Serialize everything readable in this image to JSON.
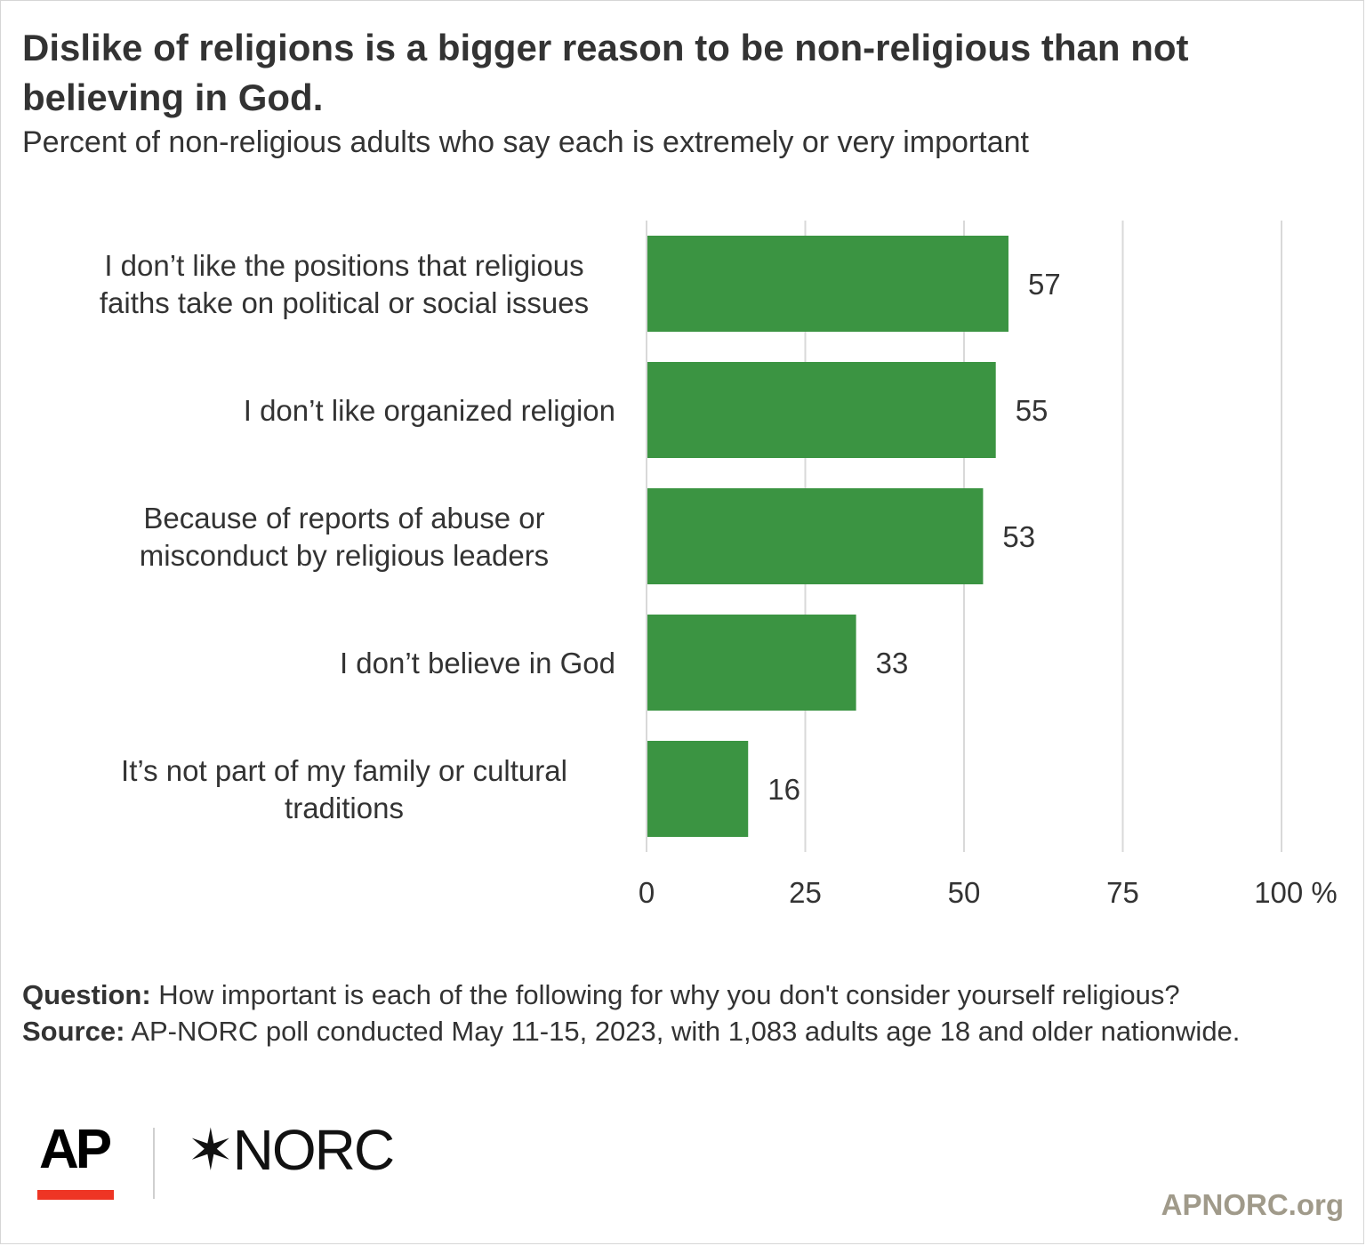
{
  "title": "Dislike of religions is a bigger reason to be non-religious than not believing in God.",
  "subtitle": "Percent of non-religious adults who say each is extremely or very important",
  "chart_data": {
    "type": "bar",
    "orientation": "horizontal",
    "categories": [
      [
        "I don’t like the positions that religious",
        "faiths take on political or social issues"
      ],
      [
        "I don’t like organized religion"
      ],
      [
        "Because of reports of abuse or",
        "misconduct by religious leaders"
      ],
      [
        "I don’t believe in God"
      ],
      [
        "It’s not part of my family or cultural",
        "traditions"
      ]
    ],
    "values": [
      57,
      55,
      53,
      33,
      16
    ],
    "xlim": [
      0,
      100
    ],
    "ticks": [
      "0",
      "25",
      "50",
      "75",
      "100 %"
    ],
    "tick_values": [
      0,
      25,
      50,
      75,
      100
    ],
    "grid": true,
    "bar_color": "#3b9442",
    "grid_color": "#d9d9d9"
  },
  "notes": {
    "question_label": "Question:",
    "question_text": "How important is each of the following for why you don't consider yourself religious?",
    "source_label": "Source:",
    "source_text": "AP-NORC poll conducted May 11-15, 2023, with 1,083 adults age 18 and older nationwide."
  },
  "logos": {
    "ap": "AP",
    "norc_mark": "✶",
    "norc": "NORC",
    "site": "APNORC.org"
  }
}
